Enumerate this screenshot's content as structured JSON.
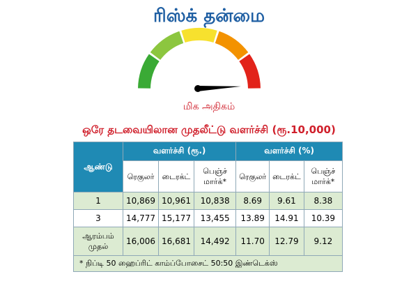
{
  "title": "ரிஸ்க் தன்மை",
  "gauge": {
    "level": "மிக அதிகம்",
    "segment_colors": [
      "#3aaa35",
      "#8cc63f",
      "#f7e12e",
      "#f39200",
      "#e2231a"
    ],
    "needle_color": "#000000"
  },
  "subtitle": "ஒரே தடவையிலான முதலீட்டு வளர்ச்சி (ரூ.10,000)",
  "table": {
    "year_header": "ஆண்டு",
    "group_headers": [
      "வளர்ச்சி (ரூ.)",
      "வளர்ச்சி (%)"
    ],
    "sub_headers": [
      "ரெகுலர்",
      "டைரக்ட்",
      "பெஞ்ச் மார்க்*",
      "ரெகுலர்",
      "டைரக்ட்",
      "பெஞ்ச் மார்க்*"
    ],
    "rows": [
      {
        "year": "1",
        "values": [
          "10,869",
          "10,961",
          "10,838",
          "8.69",
          "9.61",
          "8.38"
        ]
      },
      {
        "year": "3",
        "values": [
          "14,777",
          "15,177",
          "13,455",
          "13.89",
          "14.91",
          "10.39"
        ]
      },
      {
        "year": "ஆரம்பம் முதல்",
        "values": [
          "16,006",
          "16,681",
          "14,492",
          "11.70",
          "12.79",
          "9.12"
        ]
      }
    ]
  },
  "footnote": "*  நிப்டி 50 ஹைப்ரிட் காம்ப்போசைட் 50:50 இண்டெக்ஸ்"
}
